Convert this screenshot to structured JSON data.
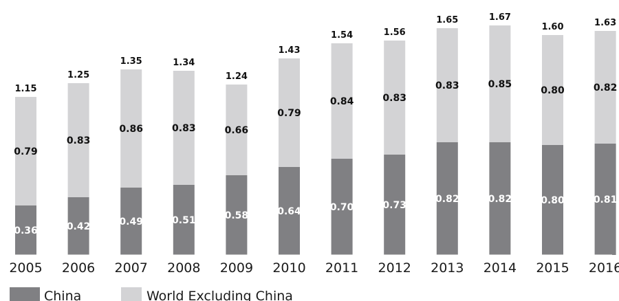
{
  "chart_data": {
    "type": "bar",
    "stacked": true,
    "categories": [
      "2005",
      "2006",
      "2007",
      "2008",
      "2009",
      "2010",
      "2011",
      "2012",
      "2013",
      "2014",
      "2015",
      "2016"
    ],
    "series": [
      {
        "name": "China",
        "color": "#808083",
        "values": [
          0.36,
          0.42,
          0.49,
          0.51,
          0.58,
          0.64,
          0.7,
          0.73,
          0.82,
          0.82,
          0.8,
          0.81
        ]
      },
      {
        "name": "World Excluding China",
        "color": "#d3d3d5",
        "values": [
          0.79,
          0.83,
          0.86,
          0.83,
          0.66,
          0.79,
          0.84,
          0.83,
          0.83,
          0.85,
          0.8,
          0.82
        ]
      }
    ],
    "totals": [
      1.15,
      1.25,
      1.35,
      1.34,
      1.24,
      1.43,
      1.54,
      1.56,
      1.65,
      1.67,
      1.6,
      1.63
    ],
    "value_labels": {
      "China": [
        "0.36",
        "0.42",
        "0.49",
        "0.51",
        "0.58",
        "0.64",
        "0.70",
        "0.73",
        "0.82",
        "0.82",
        "0.80",
        "0.81"
      ],
      "World Excluding China": [
        "0.79",
        "0.83",
        "0.86",
        "0.83",
        "0.66",
        "0.79",
        "0.84",
        "0.83",
        "0.83",
        "0.85",
        "0.80",
        "0.82"
      ],
      "totals": [
        "1.15",
        "1.25",
        "1.35",
        "1.34",
        "1.24",
        "1.43",
        "1.54",
        "1.56",
        "1.65",
        "1.67",
        "1.60",
        "1.63"
      ]
    },
    "ylim": [
      0,
      1.72
    ],
    "grid": false,
    "legend_position": "bottom-left",
    "title": "",
    "xlabel": "",
    "ylabel": ""
  }
}
